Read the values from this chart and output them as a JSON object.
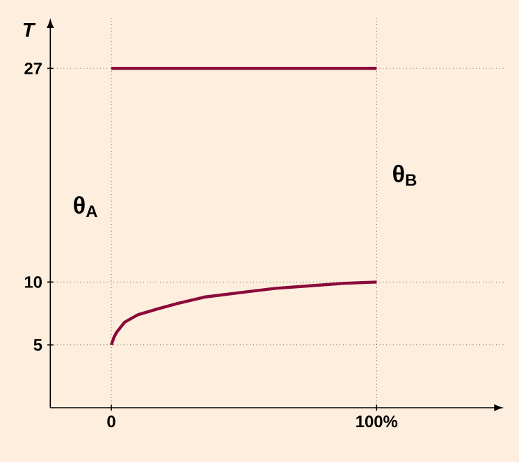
{
  "chart_data": {
    "type": "line",
    "ylabel": "T",
    "xlim": [
      -23,
      148
    ],
    "ylim": [
      0,
      31
    ],
    "xticks": [
      0,
      {
        "value": 100,
        "label": "100%"
      }
    ],
    "yticks": [
      5,
      10,
      27
    ],
    "series": [
      {
        "color": "#8b0a3a",
        "x": [
          0,
          100
        ],
        "values": [
          27,
          27
        ]
      },
      {
        "color": "#8b0a3a",
        "x": [
          0,
          1,
          2,
          5,
          10,
          18,
          25,
          35,
          50,
          62,
          75,
          88,
          100
        ],
        "values": [
          5,
          5.6,
          6.0,
          6.8,
          7.4,
          7.9,
          8.3,
          8.8,
          9.2,
          9.5,
          9.7,
          9.9,
          10
        ]
      }
    ],
    "ref_lines": [
      {
        "axis": "y",
        "value": 27,
        "line_style": "dotted",
        "color": "#8b0a3a"
      },
      {
        "axis": "y",
        "value": 10,
        "line_style": "dotted",
        "color": "#000000"
      },
      {
        "axis": "y",
        "value": 5,
        "line_style": "dotted",
        "color": "#000000"
      },
      {
        "axis": "x",
        "value": 0,
        "line_style": "dotted",
        "color": "#000000"
      },
      {
        "axis": "x",
        "value": 100,
        "line_style": "dotted",
        "color": "#000000"
      }
    ],
    "annotations": [
      {
        "text": "θ$_{A}$",
        "x": 0,
        "y": 16
      },
      {
        "text": "θ$_{B}$",
        "x": 100,
        "y": 18.5
      }
    ],
    "grid": false,
    "marker": "none",
    "line_style": "solid"
  }
}
